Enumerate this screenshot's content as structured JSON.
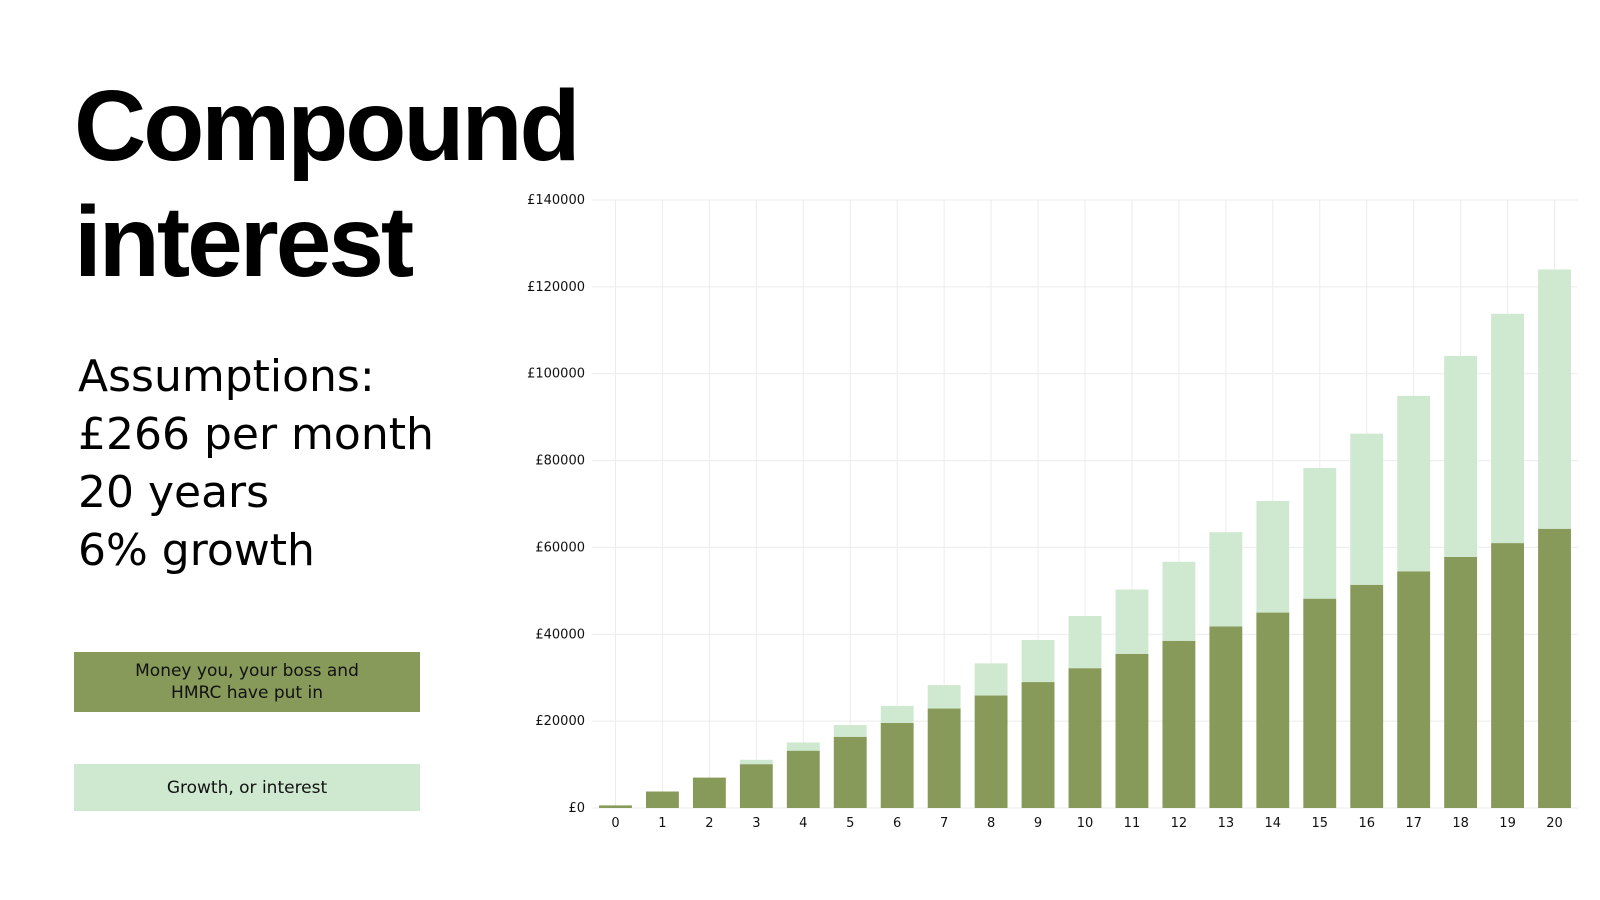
{
  "title": {
    "line1": "Compound",
    "line2": "interest"
  },
  "assumptions": {
    "heading": "Assumptions:",
    "monthly": "£266 per month",
    "years": "20 years",
    "growth": "6% growth"
  },
  "colors": {
    "contributions": "#879a59",
    "growth": "#cfe8d0",
    "grid": "#ececec"
  },
  "chart_data": {
    "type": "bar",
    "stacked": true,
    "title": "",
    "xlabel": "",
    "ylabel": "",
    "categories": [
      "0",
      "1",
      "2",
      "3",
      "4",
      "5",
      "6",
      "7",
      "8",
      "9",
      "10",
      "11",
      "12",
      "13",
      "14",
      "15",
      "16",
      "17",
      "18",
      "19",
      "20"
    ],
    "ylim": [
      0,
      140000
    ],
    "yticks": [
      0,
      20000,
      40000,
      60000,
      80000,
      100000,
      120000,
      140000
    ],
    "ytick_labels": [
      "£0",
      "£20000",
      "£40000",
      "£60000",
      "£80000",
      "£100000",
      "£120000",
      "£140000"
    ],
    "grid": true,
    "legend": "left",
    "series": [
      {
        "name": "Money you, your boss and HMRC have put in",
        "values": [
          600,
          3800,
          7000,
          10100,
          13200,
          16400,
          19600,
          22900,
          25900,
          29000,
          32200,
          35500,
          38500,
          41800,
          45000,
          48200,
          51400,
          54500,
          57800,
          61000,
          64300
        ]
      },
      {
        "name": "Growth, or interest",
        "values": [
          0,
          0,
          0,
          1000,
          1900,
          2700,
          3900,
          5400,
          7400,
          9700,
          12000,
          14800,
          18200,
          21700,
          25700,
          30100,
          34800,
          40400,
          46300,
          52800,
          59700
        ]
      }
    ]
  }
}
